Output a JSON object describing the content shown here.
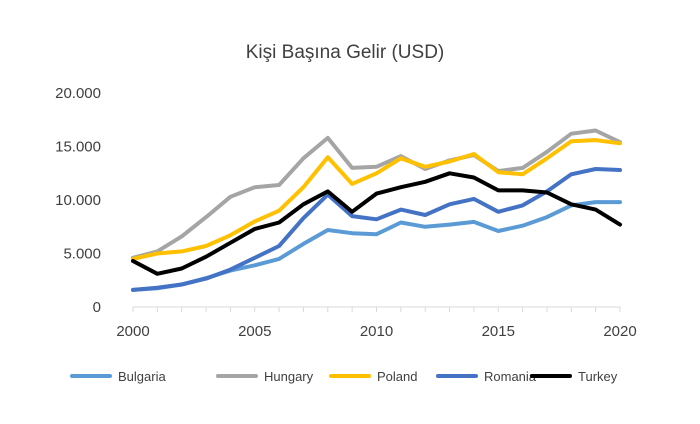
{
  "chart_data": {
    "type": "line",
    "title": "Kişi Başına Gelir (USD)",
    "xlabel": "",
    "ylabel": "",
    "x": [
      2000,
      2001,
      2002,
      2003,
      2004,
      2005,
      2006,
      2007,
      2008,
      2009,
      2010,
      2011,
      2012,
      2013,
      2014,
      2015,
      2016,
      2017,
      2018,
      2019,
      2020
    ],
    "xlim": [
      2000,
      2020
    ],
    "ylim": [
      0,
      20000
    ],
    "x_tick_labels": [
      "2000",
      "2005",
      "2010",
      "2015",
      "2020"
    ],
    "y_tick_labels": [
      "0",
      "5.000",
      "10.000",
      "15.000",
      "20.000"
    ],
    "grid": false,
    "legend_position": "bottom",
    "series": [
      {
        "name": "Bulgaria",
        "color": "#5B9BD5",
        "values": [
          1600,
          1750,
          2100,
          2700,
          3400,
          3900,
          4500,
          5900,
          7200,
          6900,
          6800,
          7900,
          7500,
          7700,
          7950,
          7100,
          7600,
          8400,
          9500,
          9800,
          9800
        ]
      },
      {
        "name": "Hungary",
        "color": "#A5A5A5",
        "values": [
          4600,
          5200,
          6600,
          8400,
          10300,
          11200,
          11400,
          13900,
          15800,
          13000,
          13100,
          14100,
          12900,
          13700,
          14200,
          12700,
          13000,
          14500,
          16200,
          16500,
          15400
        ]
      },
      {
        "name": "Poland",
        "color": "#FFC000",
        "values": [
          4500,
          5000,
          5200,
          5700,
          6700,
          8000,
          9000,
          11200,
          14000,
          11500,
          12500,
          13900,
          13100,
          13600,
          14300,
          12600,
          12400,
          13900,
          15500,
          15600,
          15300
        ]
      },
      {
        "name": "Romania",
        "color": "#4472C4",
        "values": [
          1600,
          1800,
          2100,
          2650,
          3500,
          4600,
          5700,
          8300,
          10500,
          8500,
          8200,
          9100,
          8600,
          9600,
          10100,
          8900,
          9500,
          10800,
          12400,
          12900,
          12800
        ]
      },
      {
        "name": "Turkey",
        "color": "#000000",
        "values": [
          4300,
          3100,
          3600,
          4700,
          6000,
          7300,
          7900,
          9600,
          10800,
          8900,
          10600,
          11200,
          11700,
          12500,
          12100,
          10900,
          10900,
          10700,
          9600,
          9100,
          7700
        ]
      }
    ]
  }
}
